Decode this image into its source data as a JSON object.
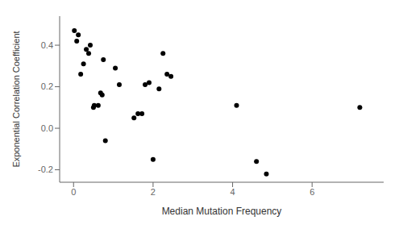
{
  "chart_data": {
    "type": "scatter",
    "xlabel": "Median Mutation Frequency",
    "ylabel": "Exponential Correlation Coefficient",
    "x": [
      0.02,
      0.08,
      0.12,
      0.18,
      0.25,
      0.32,
      0.38,
      0.42,
      0.5,
      0.52,
      0.62,
      0.68,
      0.72,
      0.75,
      0.8,
      1.05,
      1.15,
      1.52,
      1.62,
      1.72,
      1.8,
      1.9,
      2.0,
      2.15,
      2.25,
      2.35,
      2.45,
      4.1,
      4.6,
      4.85,
      7.2
    ],
    "values": [
      0.47,
      0.42,
      0.45,
      0.26,
      0.31,
      0.38,
      0.36,
      0.4,
      0.1,
      0.11,
      0.11,
      0.17,
      0.16,
      0.33,
      -0.06,
      0.29,
      0.21,
      0.05,
      0.07,
      0.07,
      0.21,
      0.22,
      -0.15,
      0.19,
      0.36,
      0.26,
      0.25,
      0.11,
      -0.16,
      -0.22,
      0.1
    ],
    "xlim": [
      -0.35,
      7.8
    ],
    "ylim": [
      -0.26,
      0.54
    ],
    "xticks": [
      0,
      2,
      4,
      6
    ],
    "yticks": [
      -0.2,
      {
        "value": 0,
        "label": "0.0"
      },
      0.2,
      0.4
    ],
    "color": "#000000",
    "grid": false
  }
}
